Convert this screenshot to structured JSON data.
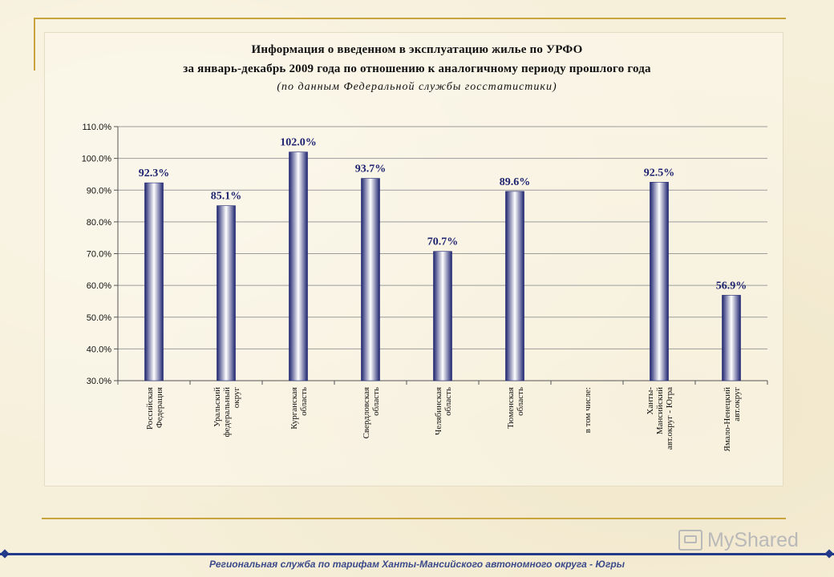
{
  "header": {
    "title_line1": "Информация о введенном в эксплуатацию жилье по УРФО",
    "title_line2": "за январь-декабрь 2009 года по отношению к аналогичному периоду прошлого года",
    "subtitle": "(по данным Федеральной службы госстатистики)"
  },
  "footer": {
    "text": "Региональная служба по тарифам Ханты-Мансийского автономного округа - Югры",
    "watermark": "MyShared"
  },
  "colors": {
    "bar_edge": "#1e2470",
    "bar_center": "#ffffff",
    "data_label": "#1e2470",
    "gold_accent": "#c9a33b"
  },
  "chart_data": {
    "type": "bar",
    "title": "Информация о введенном в эксплуатацию жилье по УРФО за январь-декабрь 2009 года по отношению к аналогичному периоду прошлого года",
    "xlabel": "",
    "ylabel": "",
    "ylim": [
      30,
      110
    ],
    "y_ticks": [
      "30.0%",
      "40.0%",
      "50.0%",
      "60.0%",
      "70.0%",
      "80.0%",
      "90.0%",
      "100.0%",
      "110.0%"
    ],
    "grid": true,
    "legend": "none",
    "categories": [
      [
        "Российская",
        "Федерация"
      ],
      [
        "Уральский",
        "федеральный",
        "округ"
      ],
      [
        "Курганская",
        "область"
      ],
      [
        "Свердловская",
        "область"
      ],
      [
        "Челябинская",
        "область"
      ],
      [
        "Тюменская",
        "область"
      ],
      [
        "в том числе:"
      ],
      [
        "Ханты-",
        "Мансийский",
        "авт.округ - Югра"
      ],
      [
        "Ямало-Ненецкий",
        "авт.округ"
      ]
    ],
    "values": [
      92.3,
      85.1,
      102.0,
      93.7,
      70.7,
      89.6,
      null,
      92.5,
      56.9
    ],
    "data_labels": [
      "92.3%",
      "85.1%",
      "102.0%",
      "93.7%",
      "70.7%",
      "89.6%",
      "",
      "92.5%",
      "56.9%"
    ]
  }
}
